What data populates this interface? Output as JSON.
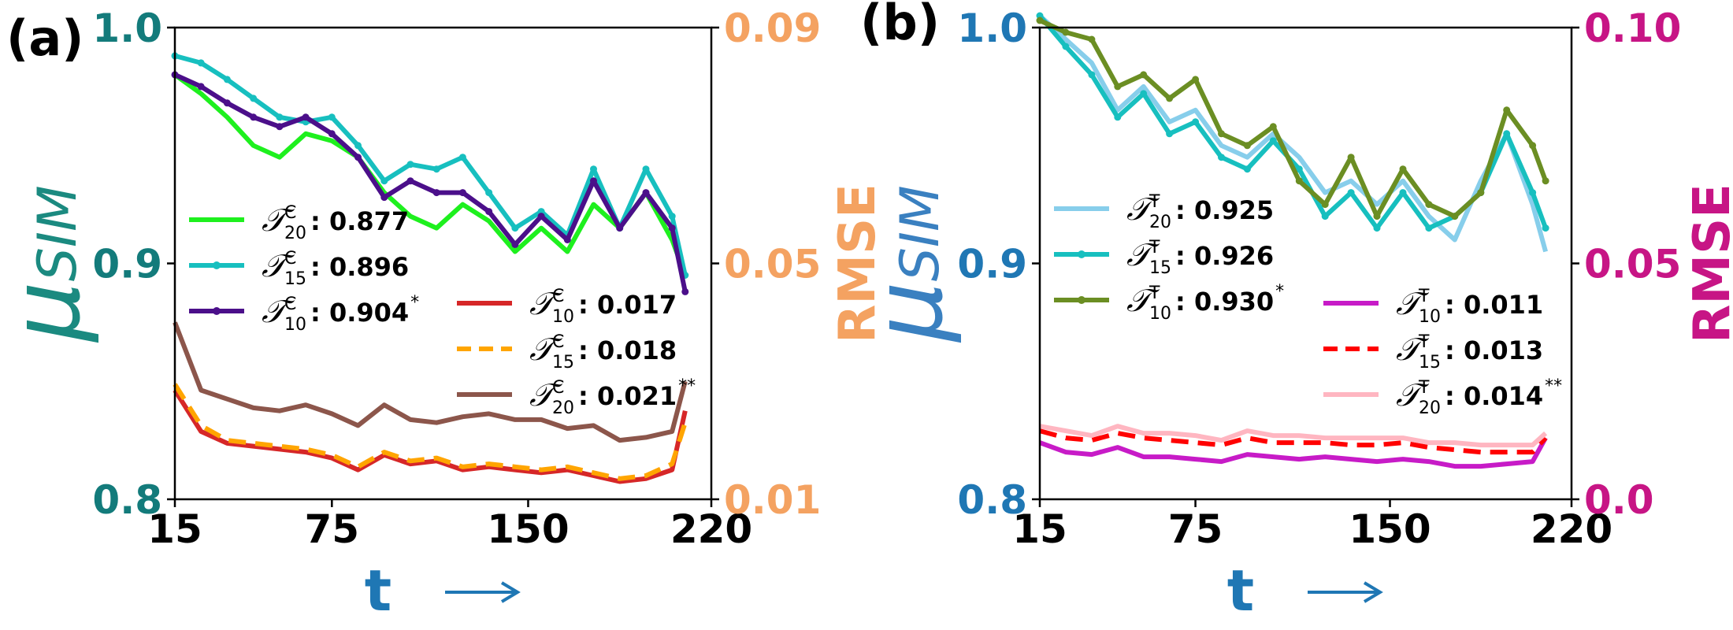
{
  "panels": [
    {
      "label": "(a)",
      "left_tick_color": "#137b7b",
      "left_label_color": "#1b8a80",
      "right_color": "#f4a261",
      "left_axis_label": "μSIM",
      "right_axis_label": "RMSE",
      "left_ticks": [
        "0.8",
        "0.9",
        "1.0"
      ],
      "right_ticks": [
        "0.01",
        "0.05",
        "0.09"
      ],
      "x_ticks": [
        "15",
        "75",
        "150",
        "220"
      ],
      "xlabel": "t",
      "legend_sim": [
        {
          "sym": "𝒯",
          "sup": "C",
          "sub": "20",
          "value": ": 0.877",
          "mark": "",
          "color": "#1ef01e",
          "style": "solid",
          "marker": false
        },
        {
          "sym": "𝒯",
          "sup": "C",
          "sub": "15",
          "value": ": 0.896",
          "mark": "",
          "color": "#17bfbf",
          "style": "solid",
          "marker": true
        },
        {
          "sym": "𝒯",
          "sup": "C",
          "sub": "10",
          "value": ": 0.904",
          "mark": "*",
          "color": "#4b0f8a",
          "style": "solid",
          "marker": true
        }
      ],
      "legend_rmse": [
        {
          "sym": "𝒯",
          "sup": "C",
          "sub": "10",
          "value": ": 0.017",
          "mark": "",
          "color": "#d62728",
          "style": "solid",
          "marker": false
        },
        {
          "sym": "𝒯",
          "sup": "C",
          "sub": "15",
          "value": ": 0.018",
          "mark": "",
          "color": "#ffa500",
          "style": "dashed",
          "marker": false
        },
        {
          "sym": "𝒯",
          "sup": "C",
          "sub": "20",
          "value": ": 0.021",
          "mark": "**",
          "color": "#8c564b",
          "style": "solid",
          "marker": false
        }
      ]
    },
    {
      "label": "(b)",
      "left_tick_color": "#1f77b4",
      "left_label_color": "#3a80c0",
      "right_color": "#c71585",
      "left_axis_label": "μSIM",
      "right_axis_label": "RMSE",
      "left_ticks": [
        "0.8",
        "0.9",
        "1.0"
      ],
      "right_ticks": [
        "0.0",
        "0.05",
        "0.10"
      ],
      "x_ticks": [
        "15",
        "75",
        "150",
        "220"
      ],
      "xlabel": "t",
      "legend_sim": [
        {
          "sym": "𝒯",
          "sup": "T",
          "sub": "20",
          "value": ": 0.925",
          "mark": "",
          "color": "#87ceeb",
          "style": "solid",
          "marker": false
        },
        {
          "sym": "𝒯",
          "sup": "T",
          "sub": "15",
          "value": ": 0.926",
          "mark": "",
          "color": "#17bfbf",
          "style": "solid",
          "marker": true
        },
        {
          "sym": "𝒯",
          "sup": "T",
          "sub": "10",
          "value": ": 0.930",
          "mark": "*",
          "color": "#6b8e23",
          "style": "solid",
          "marker": true
        }
      ],
      "legend_rmse": [
        {
          "sym": "𝒯",
          "sup": "T",
          "sub": "10",
          "value": ": 0.011",
          "mark": "",
          "color": "#c71bc7",
          "style": "solid",
          "marker": false
        },
        {
          "sym": "𝒯",
          "sup": "T",
          "sub": "15",
          "value": ": 0.013",
          "mark": "",
          "color": "#ff0000",
          "style": "dashed",
          "marker": false
        },
        {
          "sym": "𝒯",
          "sup": "T",
          "sub": "20",
          "value": ": 0.014",
          "mark": "**",
          "color": "#ffb6c1",
          "style": "solid",
          "marker": false
        }
      ]
    }
  ],
  "chart_data": [
    {
      "type": "line",
      "panel": "(a)",
      "xlabel": "t",
      "ylabel": "μSIM",
      "y2label": "RMSE",
      "xlim": [
        15,
        220
      ],
      "ylim": [
        0.8,
        1.0
      ],
      "y2lim": [
        0.01,
        0.09
      ],
      "x_ticks": [
        15,
        75,
        150,
        220
      ],
      "y_ticks": [
        0.8,
        0.9,
        1.0
      ],
      "y2_ticks": [
        0.01,
        0.05,
        0.09
      ],
      "grid": false,
      "legend": [
        "center-left",
        "center-right"
      ],
      "x": [
        15,
        25,
        35,
        45,
        55,
        65,
        75,
        85,
        95,
        105,
        115,
        125,
        135,
        145,
        155,
        165,
        175,
        185,
        195,
        205,
        210
      ],
      "series": [
        {
          "name": "𝒯20C : 0.877",
          "axis": "left",
          "color": "#1ef01e",
          "style": "solid",
          "marker": false,
          "values": [
            0.98,
            0.972,
            0.962,
            0.95,
            0.945,
            0.955,
            0.952,
            0.945,
            0.93,
            0.92,
            0.915,
            0.925,
            0.918,
            0.905,
            0.915,
            0.905,
            0.925,
            0.915,
            0.93,
            0.91,
            0.895
          ]
        },
        {
          "name": "𝒯15C : 0.896",
          "axis": "left",
          "color": "#17bfbf",
          "style": "solid",
          "marker": true,
          "values": [
            0.988,
            0.985,
            0.978,
            0.97,
            0.962,
            0.96,
            0.962,
            0.95,
            0.935,
            0.942,
            0.94,
            0.945,
            0.93,
            0.915,
            0.922,
            0.912,
            0.94,
            0.915,
            0.94,
            0.92,
            0.895
          ]
        },
        {
          "name": "𝒯10C : 0.904*",
          "axis": "left",
          "color": "#4b0f8a",
          "style": "solid",
          "marker": true,
          "values": [
            0.98,
            0.975,
            0.968,
            0.962,
            0.958,
            0.962,
            0.955,
            0.945,
            0.928,
            0.935,
            0.93,
            0.93,
            0.922,
            0.908,
            0.92,
            0.91,
            0.935,
            0.915,
            0.93,
            0.915,
            0.888
          ]
        },
        {
          "name": "𝒯10C : 0.017",
          "axis": "right",
          "color": "#d62728",
          "style": "solid",
          "marker": false,
          "values": [
            0.0285,
            0.0215,
            0.0195,
            0.019,
            0.0185,
            0.018,
            0.017,
            0.015,
            0.0175,
            0.016,
            0.0165,
            0.015,
            0.0155,
            0.015,
            0.0145,
            0.015,
            0.014,
            0.013,
            0.0135,
            0.015,
            0.025
          ]
        },
        {
          "name": "𝒯15C : 0.018",
          "axis": "right",
          "color": "#ffa500",
          "style": "dashed",
          "marker": false,
          "values": [
            0.0295,
            0.0225,
            0.02,
            0.0195,
            0.019,
            0.0185,
            0.0175,
            0.0155,
            0.018,
            0.0165,
            0.017,
            0.0155,
            0.016,
            0.0155,
            0.015,
            0.0155,
            0.0145,
            0.0135,
            0.014,
            0.016,
            0.023
          ]
        },
        {
          "name": "𝒯20C : 0.021**",
          "axis": "right",
          "color": "#8c564b",
          "style": "solid",
          "marker": false,
          "values": [
            0.04,
            0.0285,
            0.027,
            0.0255,
            0.025,
            0.026,
            0.0245,
            0.0225,
            0.026,
            0.0235,
            0.023,
            0.024,
            0.0245,
            0.0235,
            0.0235,
            0.022,
            0.0225,
            0.02,
            0.0205,
            0.0215,
            0.03
          ]
        }
      ]
    },
    {
      "type": "line",
      "panel": "(b)",
      "xlabel": "t",
      "ylabel": "μSIM",
      "y2label": "RMSE",
      "xlim": [
        15,
        220
      ],
      "ylim": [
        0.8,
        1.0
      ],
      "y2lim": [
        0.0,
        0.1
      ],
      "x_ticks": [
        15,
        75,
        150,
        220
      ],
      "y_ticks": [
        0.8,
        0.9,
        1.0
      ],
      "y2_ticks": [
        0.0,
        0.05,
        0.1
      ],
      "grid": false,
      "legend": [
        "center-left",
        "center-right"
      ],
      "x": [
        15,
        25,
        35,
        45,
        55,
        65,
        75,
        85,
        95,
        105,
        115,
        125,
        135,
        145,
        155,
        165,
        175,
        185,
        195,
        205,
        210
      ],
      "series": [
        {
          "name": "𝒯20T : 0.925",
          "axis": "left",
          "color": "#87ceeb",
          "style": "solid",
          "marker": false,
          "values": [
            1.005,
            0.995,
            0.985,
            0.965,
            0.975,
            0.96,
            0.965,
            0.95,
            0.945,
            0.955,
            0.945,
            0.93,
            0.935,
            0.925,
            0.935,
            0.92,
            0.91,
            0.935,
            0.955,
            0.925,
            0.905
          ]
        },
        {
          "name": "𝒯15T : 0.926",
          "axis": "left",
          "color": "#17bfbf",
          "style": "solid",
          "marker": true,
          "values": [
            1.005,
            0.992,
            0.98,
            0.962,
            0.972,
            0.955,
            0.96,
            0.945,
            0.94,
            0.952,
            0.94,
            0.92,
            0.93,
            0.915,
            0.93,
            0.915,
            0.92,
            0.93,
            0.955,
            0.93,
            0.915
          ]
        },
        {
          "name": "𝒯10T : 0.930*",
          "axis": "left",
          "color": "#6b8e23",
          "style": "solid",
          "marker": true,
          "values": [
            1.003,
            0.998,
            0.995,
            0.975,
            0.98,
            0.97,
            0.978,
            0.955,
            0.95,
            0.958,
            0.935,
            0.925,
            0.945,
            0.92,
            0.94,
            0.925,
            0.92,
            0.93,
            0.965,
            0.95,
            0.935
          ]
        },
        {
          "name": "𝒯10T : 0.011",
          "axis": "right",
          "color": "#c71bc7",
          "style": "solid",
          "marker": false,
          "values": [
            0.012,
            0.01,
            0.0095,
            0.011,
            0.009,
            0.009,
            0.0085,
            0.008,
            0.0095,
            0.009,
            0.0085,
            0.009,
            0.0085,
            0.008,
            0.0085,
            0.008,
            0.007,
            0.007,
            0.0075,
            0.008,
            0.013
          ]
        },
        {
          "name": "𝒯15T : 0.013",
          "axis": "right",
          "color": "#ff0000",
          "style": "dashed",
          "marker": false,
          "values": [
            0.0145,
            0.013,
            0.0125,
            0.014,
            0.013,
            0.0125,
            0.012,
            0.0115,
            0.013,
            0.012,
            0.012,
            0.012,
            0.0115,
            0.0115,
            0.012,
            0.011,
            0.0105,
            0.01,
            0.01,
            0.01,
            0.013
          ]
        },
        {
          "name": "𝒯20T : 0.014**",
          "axis": "right",
          "color": "#ffb6c1",
          "style": "solid",
          "marker": false,
          "values": [
            0.0155,
            0.0145,
            0.0135,
            0.0155,
            0.014,
            0.014,
            0.0135,
            0.0125,
            0.0145,
            0.0135,
            0.0135,
            0.013,
            0.013,
            0.013,
            0.013,
            0.012,
            0.012,
            0.0115,
            0.0115,
            0.0115,
            0.014
          ]
        }
      ]
    }
  ]
}
